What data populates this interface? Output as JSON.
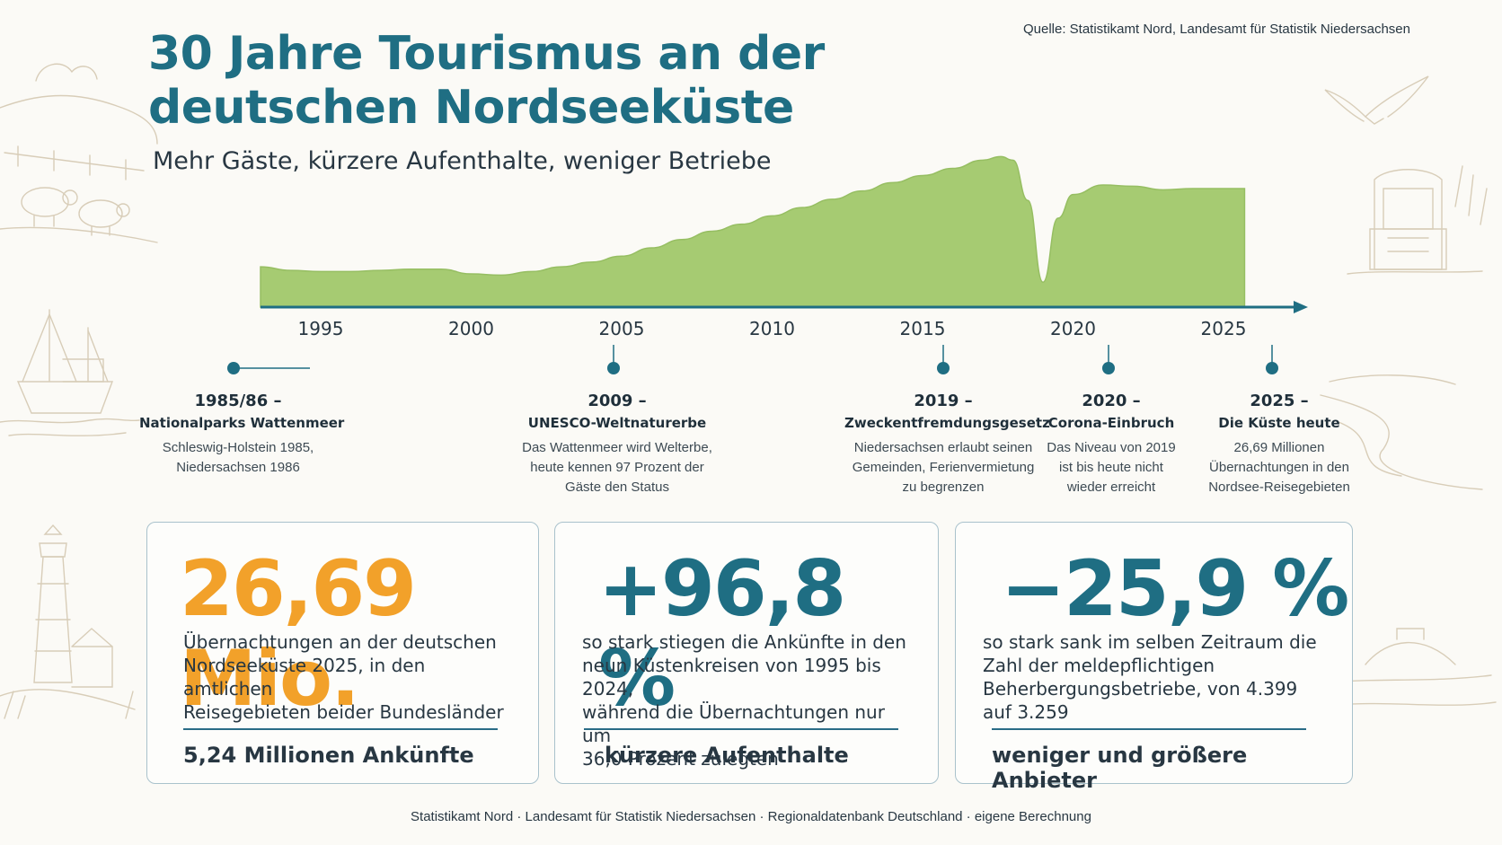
{
  "header": {
    "title_line1": "30 Jahre Tourismus an der",
    "title_line2": "deutschen Nordseeküste",
    "subtitle": "Mehr Gäste, kürzere Aufenthalte, weniger Betriebe",
    "source": "Quelle: Statistikamt Nord, Landesamt für Statistik Niedersachsen"
  },
  "colors": {
    "title": "#1f6e83",
    "area_fill": "#a6cb72",
    "axis": "#1f6e83",
    "accent_orange": "#f2a12a",
    "accent_teal": "#1f6e83"
  },
  "chart_data": {
    "type": "area",
    "x_ticks": [
      1995,
      2000,
      2005,
      2010,
      2015,
      2020,
      2025
    ],
    "x": [
      1993,
      1994,
      1995,
      1996,
      1997,
      1998,
      1999,
      2000,
      2001,
      2002,
      2003,
      2004,
      2005,
      2006,
      2007,
      2008,
      2009,
      2010,
      2011,
      2012,
      2013,
      2014,
      2015,
      2016,
      2017,
      2017.6,
      2018,
      2018.5,
      2019,
      2019.5,
      2020,
      2021,
      2022,
      2023,
      2024,
      2025,
      2025.7
    ],
    "values": [
      34,
      31,
      30,
      30,
      31,
      32,
      32,
      28,
      27,
      30,
      34,
      38,
      43,
      50,
      57,
      64,
      70,
      77,
      84,
      91,
      98,
      105,
      111,
      117,
      124,
      127,
      124,
      90,
      21,
      75,
      95,
      103,
      102,
      99,
      100,
      100,
      100
    ],
    "ylim": [
      0,
      135
    ],
    "grid": false,
    "legend": "none",
    "xlabel": "",
    "ylabel": ""
  },
  "timeline": [
    {
      "year": "1985/86 –",
      "title": "Nationalparks Wattenmeer",
      "text": [
        "Schleswig-Holstein 1985,",
        "Niedersachsen 1986"
      ]
    },
    {
      "year": "2009 –",
      "title": "UNESCO-Weltnaturerbe",
      "text": [
        "Das Wattenmeer wird Welterbe,",
        "heute kennen 97 Prozent der",
        "Gäste den Status"
      ]
    },
    {
      "year": "2019 –",
      "title": "Zweckentfremdungsgesetz",
      "text": [
        "Niedersachsen erlaubt seinen",
        "Gemeinden, Ferienvermietung",
        "zu begrenzen"
      ]
    },
    {
      "year": "2020 –",
      "title": "Corona-Einbruch",
      "text": [
        "Das Niveau von 2019",
        "ist bis heute nicht",
        "wieder erreicht"
      ]
    },
    {
      "year": "2025 –",
      "title": "Die Küste heute",
      "text": [
        "26,69 Millionen",
        "Übernachtungen in den",
        "Nordsee-Reisegebieten"
      ]
    }
  ],
  "cards": [
    {
      "value": "26,69 Mio.",
      "text": [
        "Übernachtungen an der deutschen",
        "Nordseeküste 2025, in den amtlichen",
        "Reisegebieten beider Bundesländer"
      ],
      "footer": "5,24 Millionen Ankünfte",
      "color": "#f2a12a"
    },
    {
      "value": "+96,8 %",
      "text": [
        "so stark stiegen die Ankünfte in den",
        "neun Küstenkreisen von 1995 bis 2024,",
        "während die Übernachtungen nur um",
        "36,0 Prozent zulegten"
      ],
      "footer": "kürzere Aufenthalte",
      "color": "#1f6e83"
    },
    {
      "value": "−25,9 %",
      "text": [
        "so stark sank im selben Zeitraum die",
        "Zahl der meldepflichtigen",
        "Beherbergungsbetriebe, von 4.399",
        "auf 3.259"
      ],
      "footer": "weniger und größere Anbieter",
      "color": "#1f6e83"
    }
  ],
  "footer": "Statistikamt Nord · Landesamt für Statistik Niedersachsen · Regionaldatenbank Deutschland · eigene Berechnung",
  "decorations": [
    "sheep-illustration",
    "fishing-boat-illustration",
    "lighthouse-illustration",
    "seagull-illustration",
    "beach-chair-illustration",
    "island-illustration"
  ]
}
